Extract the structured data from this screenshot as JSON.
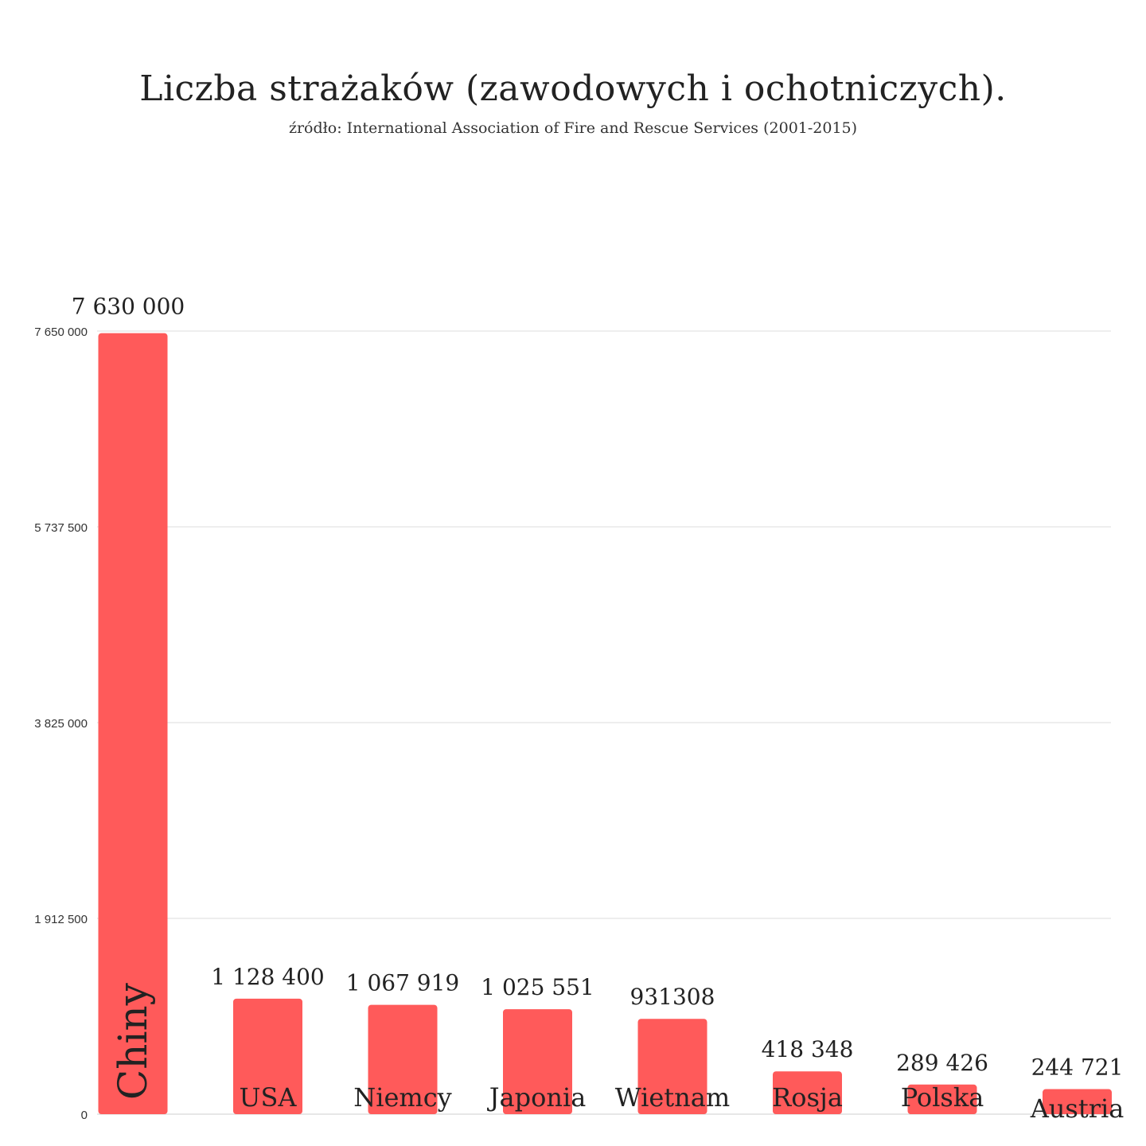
{
  "header": {
    "title": "Liczba strażaków (zawodowych i ochotniczych).",
    "subtitle": "źródło: International Association of Fire and Rescue Services (2001-2015)"
  },
  "chart_data": {
    "type": "bar",
    "title": "Liczba strażaków (zawodowych i ochotniczych).",
    "subtitle": "źródło: International Association of Fire and Rescue Services (2001-2015)",
    "categories": [
      "Chiny",
      "USA",
      "Niemcy",
      "Japonia",
      "Wietnam",
      "Rosja",
      "Polska",
      "Austria"
    ],
    "values": [
      7630000,
      1128400,
      1067919,
      1025551,
      931308,
      418348,
      289426,
      244721
    ],
    "value_labels": [
      "7 630 000",
      "1 128 400",
      "1 067 919",
      "1 025 551",
      "931308",
      "418 348",
      "289 426",
      "244 721"
    ],
    "ylim": [
      0,
      7650000
    ],
    "yticks": [
      0,
      1912500,
      3825000,
      5737500,
      7650000
    ],
    "ytick_labels": [
      "0",
      "1 912 500",
      "3 825 000",
      "5 737 500",
      "7 650 000"
    ],
    "xlabel": "",
    "ylabel": "",
    "grid": true,
    "bar_color": "#ff5a5a"
  }
}
